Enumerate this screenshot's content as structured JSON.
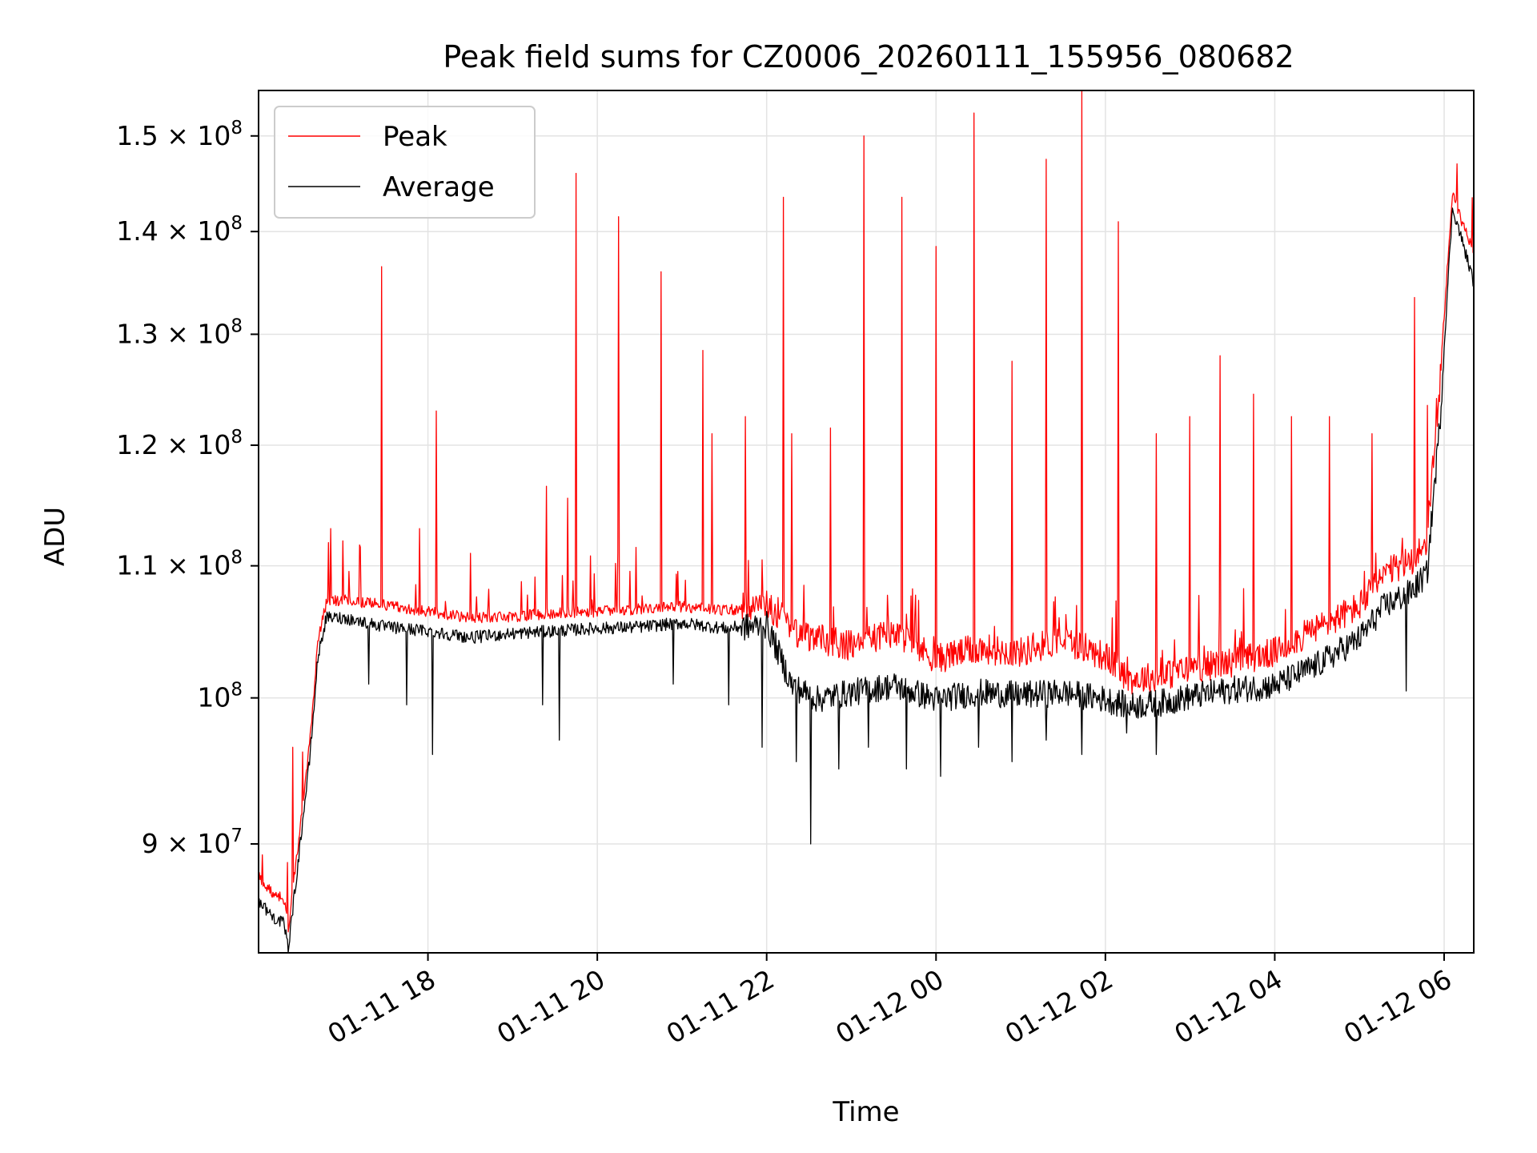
{
  "chart_data": {
    "type": "line",
    "title": "Peak field sums for CZ0006_20260111_155956_080682",
    "xlabel": "Time",
    "ylabel": "ADU",
    "yscale": "log",
    "ylim": [
      83200000,
      155000000
    ],
    "xlim_hours": [
      16.0,
      30.35
    ],
    "x_ticks": [
      {
        "label": "01-11 18",
        "hours": 18
      },
      {
        "label": "01-11 20",
        "hours": 20
      },
      {
        "label": "01-11 22",
        "hours": 22
      },
      {
        "label": "01-12 00",
        "hours": 24
      },
      {
        "label": "01-12 02",
        "hours": 26
      },
      {
        "label": "01-12 04",
        "hours": 28
      },
      {
        "label": "01-12 06",
        "hours": 30
      }
    ],
    "y_ticks": [
      {
        "mantissa": "9",
        "exponent": "7",
        "value": 90000000
      },
      {
        "mantissa": "",
        "exponent": "8",
        "value": 100000000
      },
      {
        "mantissa": "1.1",
        "exponent": "8",
        "value": 110000000
      },
      {
        "mantissa": "1.2",
        "exponent": "8",
        "value": 120000000
      },
      {
        "mantissa": "1.3",
        "exponent": "8",
        "value": 130000000
      },
      {
        "mantissa": "1.4",
        "exponent": "8",
        "value": 140000000
      },
      {
        "mantissa": "1.5",
        "exponent": "8",
        "value": 150000000
      }
    ],
    "times_symbol": "×",
    "grid": true,
    "legend_position": "top-left",
    "series": [
      {
        "name": "Peak",
        "color": "#ff0000"
      },
      {
        "name": "Average",
        "color": "#000000"
      }
    ],
    "baseline_peak": {
      "hours": [
        16.0,
        16.15,
        16.3,
        16.35,
        16.45,
        16.6,
        16.65,
        16.7,
        16.8,
        17.0,
        17.5,
        18.0,
        18.5,
        19.0,
        19.5,
        20.0,
        20.5,
        21.0,
        21.5,
        22.0,
        22.3,
        22.6,
        23.0,
        23.5,
        24.0,
        24.5,
        25.0,
        25.5,
        26.0,
        26.3,
        26.7,
        27.0,
        27.5,
        28.0,
        28.5,
        29.0,
        29.3,
        29.6,
        29.8,
        29.95,
        30.1,
        30.2,
        30.35
      ],
      "values": [
        87800000,
        86800000,
        86400000,
        84500000,
        89000000,
        96500000,
        100000000,
        104000000,
        107000000,
        107200000,
        106800000,
        106300000,
        105800000,
        105900000,
        106200000,
        106300000,
        106500000,
        106700000,
        106400000,
        106600000,
        104500000,
        104000000,
        103500000,
        104500000,
        102500000,
        103300000,
        103000000,
        104000000,
        102700000,
        101000000,
        101300000,
        101800000,
        102300000,
        103000000,
        104800000,
        106500000,
        109000000,
        110000000,
        111500000,
        125000000,
        144000000,
        141000000,
        138000000
      ]
    },
    "baseline_average": {
      "hours": [
        16.0,
        16.15,
        16.3,
        16.35,
        16.45,
        16.6,
        16.65,
        16.7,
        16.8,
        17.0,
        17.5,
        18.0,
        18.5,
        19.0,
        19.5,
        20.0,
        20.5,
        21.0,
        21.5,
        22.0,
        22.3,
        22.6,
        23.0,
        23.5,
        24.0,
        24.5,
        25.0,
        25.5,
        26.0,
        26.3,
        26.7,
        27.0,
        27.5,
        28.0,
        28.5,
        29.0,
        29.3,
        29.6,
        29.8,
        29.95,
        30.1,
        30.2,
        30.35
      ],
      "values": [
        86500000,
        85500000,
        85000000,
        83500000,
        88000000,
        95500000,
        99000000,
        103000000,
        106000000,
        106000000,
        105300000,
        105000000,
        104500000,
        104800000,
        105000000,
        105200000,
        105300000,
        105600000,
        105200000,
        105500000,
        101000000,
        100000000,
        100500000,
        101000000,
        100000000,
        100500000,
        100300000,
        100500000,
        100000000,
        99500000,
        99800000,
        100200000,
        100700000,
        101000000,
        102500000,
        104500000,
        107000000,
        108000000,
        109500000,
        122000000,
        142500000,
        139500000,
        135000000
      ]
    },
    "peak_spikes": [
      {
        "hours": 16.4,
        "value": 96500000
      },
      {
        "hours": 16.85,
        "value": 113000000
      },
      {
        "hours": 17.0,
        "value": 112000000
      },
      {
        "hours": 17.2,
        "value": 111500000
      },
      {
        "hours": 17.45,
        "value": 136500000
      },
      {
        "hours": 17.9,
        "value": 113000000
      },
      {
        "hours": 18.1,
        "value": 123000000
      },
      {
        "hours": 18.5,
        "value": 111000000
      },
      {
        "hours": 19.4,
        "value": 116500000
      },
      {
        "hours": 19.65,
        "value": 115500000
      },
      {
        "hours": 19.75,
        "value": 146000000
      },
      {
        "hours": 20.25,
        "value": 141500000
      },
      {
        "hours": 20.75,
        "value": 136000000
      },
      {
        "hours": 21.25,
        "value": 128500000
      },
      {
        "hours": 21.35,
        "value": 121000000
      },
      {
        "hours": 21.75,
        "value": 122500000
      },
      {
        "hours": 22.2,
        "value": 143500000
      },
      {
        "hours": 22.3,
        "value": 121000000
      },
      {
        "hours": 22.75,
        "value": 121500000
      },
      {
        "hours": 23.15,
        "value": 150000000
      },
      {
        "hours": 23.6,
        "value": 143500000
      },
      {
        "hours": 24.0,
        "value": 138500000
      },
      {
        "hours": 24.45,
        "value": 152500000
      },
      {
        "hours": 24.9,
        "value": 127500000
      },
      {
        "hours": 25.3,
        "value": 147500000
      },
      {
        "hours": 25.72,
        "value": 155000000
      },
      {
        "hours": 26.15,
        "value": 141000000
      },
      {
        "hours": 26.6,
        "value": 121000000
      },
      {
        "hours": 27.0,
        "value": 122500000
      },
      {
        "hours": 27.35,
        "value": 128000000
      },
      {
        "hours": 27.75,
        "value": 124500000
      },
      {
        "hours": 28.2,
        "value": 122500000
      },
      {
        "hours": 28.65,
        "value": 122500000
      },
      {
        "hours": 29.15,
        "value": 121000000
      },
      {
        "hours": 29.65,
        "value": 133500000
      },
      {
        "hours": 29.8,
        "value": 123500000
      },
      {
        "hours": 30.15,
        "value": 147000000
      }
    ],
    "average_dips": [
      {
        "hours": 17.3,
        "value": 101000000
      },
      {
        "hours": 17.75,
        "value": 99500000
      },
      {
        "hours": 18.05,
        "value": 96000000
      },
      {
        "hours": 19.35,
        "value": 99500000
      },
      {
        "hours": 19.55,
        "value": 97000000
      },
      {
        "hours": 20.9,
        "value": 101000000
      },
      {
        "hours": 21.55,
        "value": 99500000
      },
      {
        "hours": 21.95,
        "value": 96500000
      },
      {
        "hours": 22.35,
        "value": 95500000
      },
      {
        "hours": 22.52,
        "value": 90000000
      },
      {
        "hours": 22.85,
        "value": 95000000
      },
      {
        "hours": 23.2,
        "value": 96500000
      },
      {
        "hours": 23.65,
        "value": 95000000
      },
      {
        "hours": 24.05,
        "value": 94500000
      },
      {
        "hours": 24.5,
        "value": 96500000
      },
      {
        "hours": 24.9,
        "value": 95500000
      },
      {
        "hours": 25.3,
        "value": 97000000
      },
      {
        "hours": 25.72,
        "value": 96000000
      },
      {
        "hours": 26.25,
        "value": 97500000
      },
      {
        "hours": 26.6,
        "value": 96000000
      },
      {
        "hours": 29.55,
        "value": 100500000
      }
    ]
  }
}
